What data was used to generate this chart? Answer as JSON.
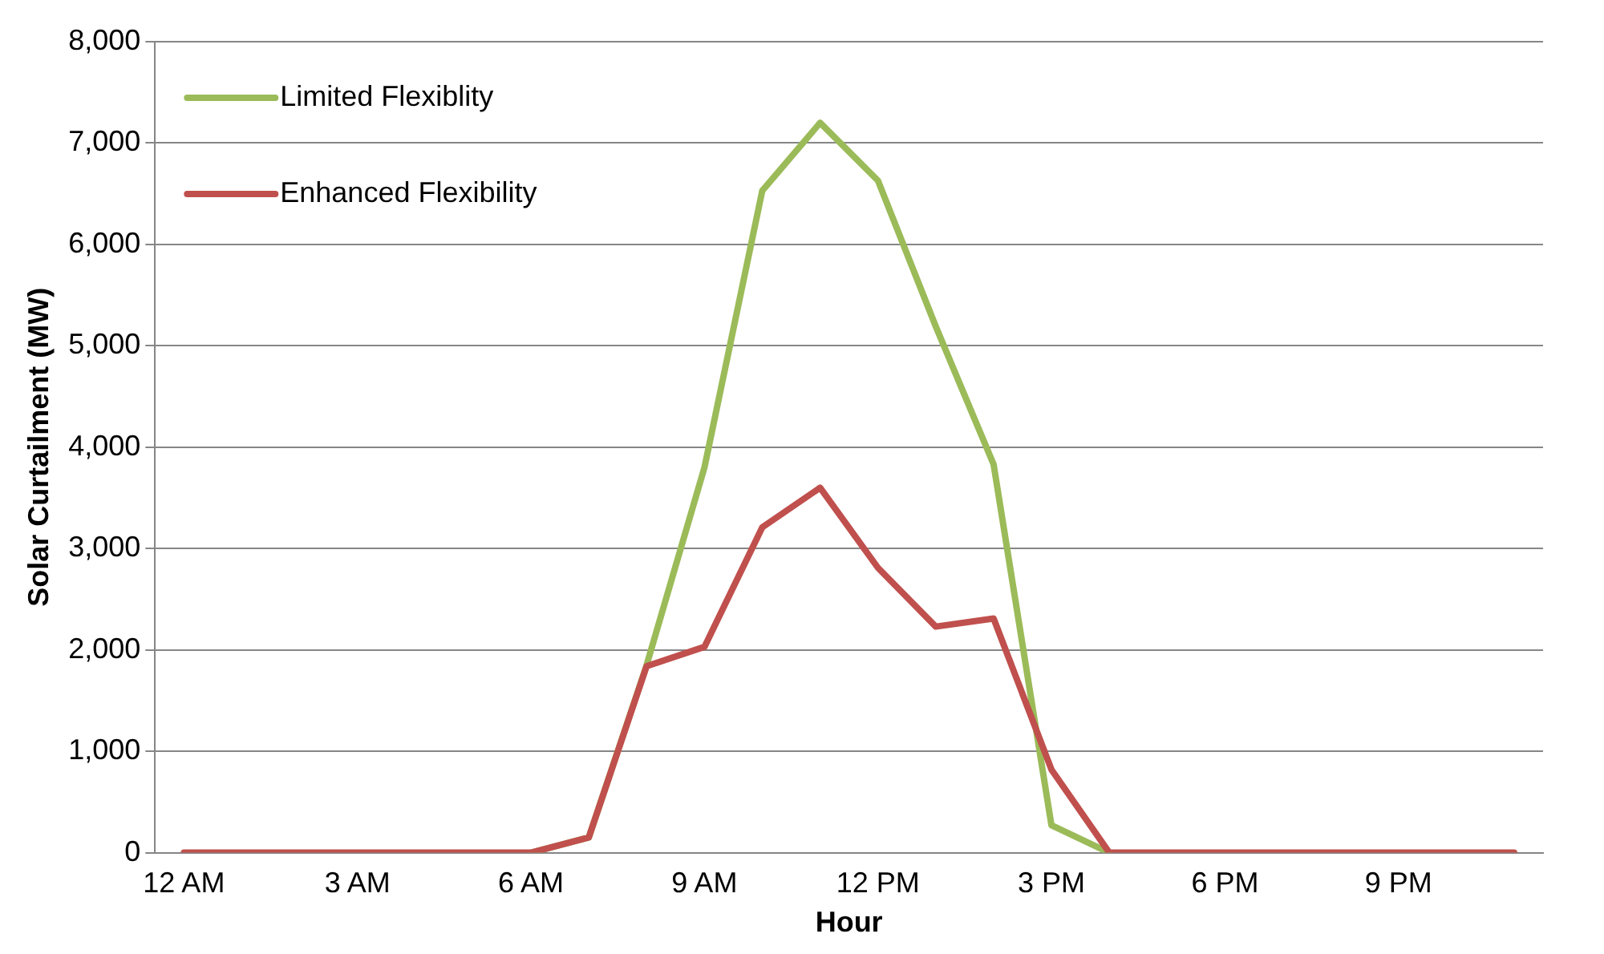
{
  "chart_data": {
    "type": "line",
    "xlabel": "Hour",
    "ylabel": "Solar Curtailment (MW)",
    "categories": [
      "12 AM",
      null,
      null,
      "3 AM",
      null,
      null,
      "6 AM",
      null,
      null,
      "9 AM",
      null,
      null,
      "12 PM",
      null,
      null,
      "3 PM",
      null,
      null,
      "6 PM",
      null,
      null,
      "9 PM",
      null,
      null
    ],
    "series": [
      {
        "name": "Limited Flexiblity",
        "color": "#9bbb59",
        "values": [
          null,
          null,
          null,
          null,
          null,
          null,
          0,
          150,
          1850,
          3800,
          6530,
          7200,
          6630,
          5190,
          3830,
          270,
          0,
          null,
          null,
          null,
          null,
          null,
          null,
          null
        ]
      },
      {
        "name": "Enhanced Flexibility",
        "color": "#c0504d",
        "values": [
          0,
          0,
          0,
          0,
          0,
          0,
          0,
          150,
          1840,
          2030,
          3210,
          3600,
          2810,
          2230,
          2310,
          820,
          0,
          0,
          0,
          0,
          0,
          0,
          0,
          0
        ]
      }
    ],
    "ylim": [
      0,
      8000
    ],
    "yticks": [
      0,
      {
        "value": 1000,
        "label": "1,000"
      },
      {
        "value": 2000,
        "label": "2,000"
      },
      {
        "value": 3000,
        "label": "3,000"
      },
      {
        "value": 4000,
        "label": "4,000"
      },
      {
        "value": 5000,
        "label": "5,000"
      },
      {
        "value": 6000,
        "label": "6,000"
      },
      {
        "value": 7000,
        "label": "7,000"
      },
      {
        "value": 8000,
        "label": "8,000"
      }
    ],
    "grid": "y",
    "legend": "top left",
    "marker": "none",
    "line_style": "solid"
  }
}
